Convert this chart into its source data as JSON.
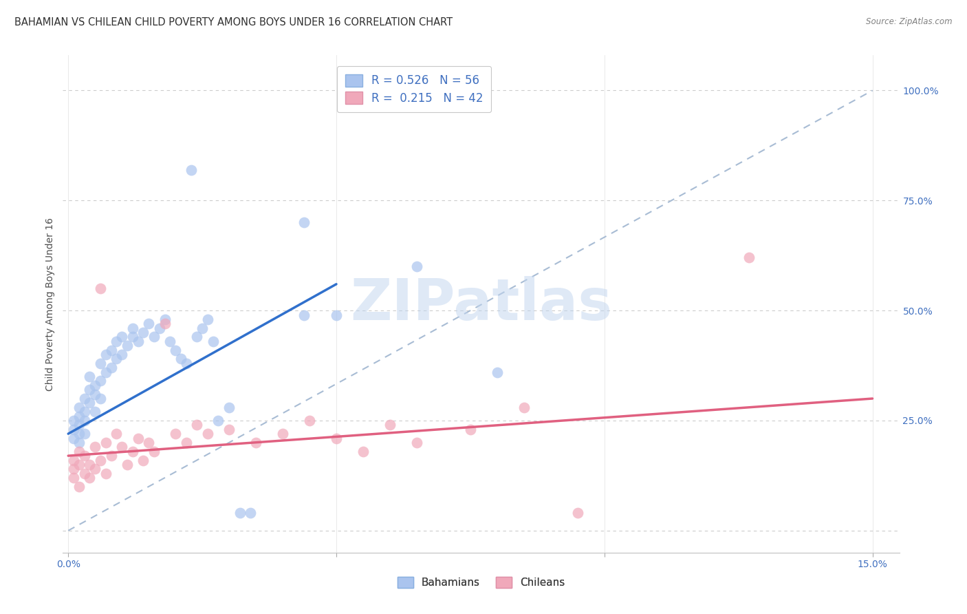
{
  "title": "BAHAMIAN VS CHILEAN CHILD POVERTY AMONG BOYS UNDER 16 CORRELATION CHART",
  "source": "Source: ZipAtlas.com",
  "ylabel": "Child Poverty Among Boys Under 16",
  "xlim": [
    -0.001,
    0.155
  ],
  "ylim": [
    -0.05,
    1.08
  ],
  "xtick_positions": [
    0.0,
    0.05,
    0.1,
    0.15
  ],
  "xticklabels": [
    "0.0%",
    "",
    "",
    "15.0%"
  ],
  "yticks_right": [
    0.0,
    0.25,
    0.5,
    0.75,
    1.0
  ],
  "yticklabels_right": [
    "",
    "25.0%",
    "50.0%",
    "75.0%",
    "100.0%"
  ],
  "bahamian_color": "#aac4ee",
  "chilean_color": "#f0a8ba",
  "bahamian_line_color": "#3070cc",
  "chilean_line_color": "#e06080",
  "ref_line_color": "#a8bcd4",
  "R_bahamian": 0.526,
  "N_bahamian": 56,
  "R_chilean": 0.215,
  "N_chilean": 42,
  "watermark": "ZIPatlas",
  "watermark_color": "#c0d4ee",
  "background_color": "#ffffff",
  "grid_color": "#cccccc",
  "title_color": "#303030",
  "tick_color": "#4070c0",
  "tick_fontsize": 10,
  "legend_fontsize": 12,
  "axis_label_fontsize": 10,
  "bahamian_x": [
    0.001,
    0.001,
    0.001,
    0.002,
    0.002,
    0.002,
    0.002,
    0.002,
    0.003,
    0.003,
    0.003,
    0.003,
    0.004,
    0.004,
    0.004,
    0.005,
    0.005,
    0.005,
    0.006,
    0.006,
    0.006,
    0.007,
    0.007,
    0.008,
    0.008,
    0.009,
    0.009,
    0.01,
    0.01,
    0.011,
    0.012,
    0.012,
    0.013,
    0.014,
    0.015,
    0.016,
    0.017,
    0.018,
    0.019,
    0.02,
    0.021,
    0.022,
    0.023,
    0.024,
    0.025,
    0.026,
    0.027,
    0.028,
    0.03,
    0.032,
    0.034,
    0.044,
    0.044,
    0.05,
    0.065,
    0.08
  ],
  "bahamian_y": [
    0.23,
    0.21,
    0.25,
    0.24,
    0.22,
    0.2,
    0.26,
    0.28,
    0.25,
    0.27,
    0.3,
    0.22,
    0.29,
    0.32,
    0.35,
    0.31,
    0.27,
    0.33,
    0.34,
    0.38,
    0.3,
    0.36,
    0.4,
    0.37,
    0.41,
    0.39,
    0.43,
    0.4,
    0.44,
    0.42,
    0.44,
    0.46,
    0.43,
    0.45,
    0.47,
    0.44,
    0.46,
    0.48,
    0.43,
    0.41,
    0.39,
    0.38,
    0.82,
    0.44,
    0.46,
    0.48,
    0.43,
    0.25,
    0.28,
    0.04,
    0.04,
    0.7,
    0.49,
    0.49,
    0.6,
    0.36
  ],
  "chilean_x": [
    0.001,
    0.001,
    0.001,
    0.002,
    0.002,
    0.002,
    0.003,
    0.003,
    0.004,
    0.004,
    0.005,
    0.005,
    0.006,
    0.006,
    0.007,
    0.007,
    0.008,
    0.009,
    0.01,
    0.011,
    0.012,
    0.013,
    0.014,
    0.015,
    0.016,
    0.018,
    0.02,
    0.022,
    0.024,
    0.026,
    0.03,
    0.035,
    0.04,
    0.045,
    0.05,
    0.055,
    0.06,
    0.065,
    0.075,
    0.085,
    0.095,
    0.127
  ],
  "chilean_y": [
    0.14,
    0.16,
    0.12,
    0.15,
    0.18,
    0.1,
    0.13,
    0.17,
    0.15,
    0.12,
    0.19,
    0.14,
    0.55,
    0.16,
    0.2,
    0.13,
    0.17,
    0.22,
    0.19,
    0.15,
    0.18,
    0.21,
    0.16,
    0.2,
    0.18,
    0.47,
    0.22,
    0.2,
    0.24,
    0.22,
    0.23,
    0.2,
    0.22,
    0.25,
    0.21,
    0.18,
    0.24,
    0.2,
    0.23,
    0.28,
    0.04,
    0.62
  ],
  "blue_line_x": [
    0.0,
    0.05
  ],
  "blue_line_y": [
    0.22,
    0.56
  ],
  "pink_line_x": [
    0.0,
    0.15
  ],
  "pink_line_y": [
    0.17,
    0.3
  ]
}
